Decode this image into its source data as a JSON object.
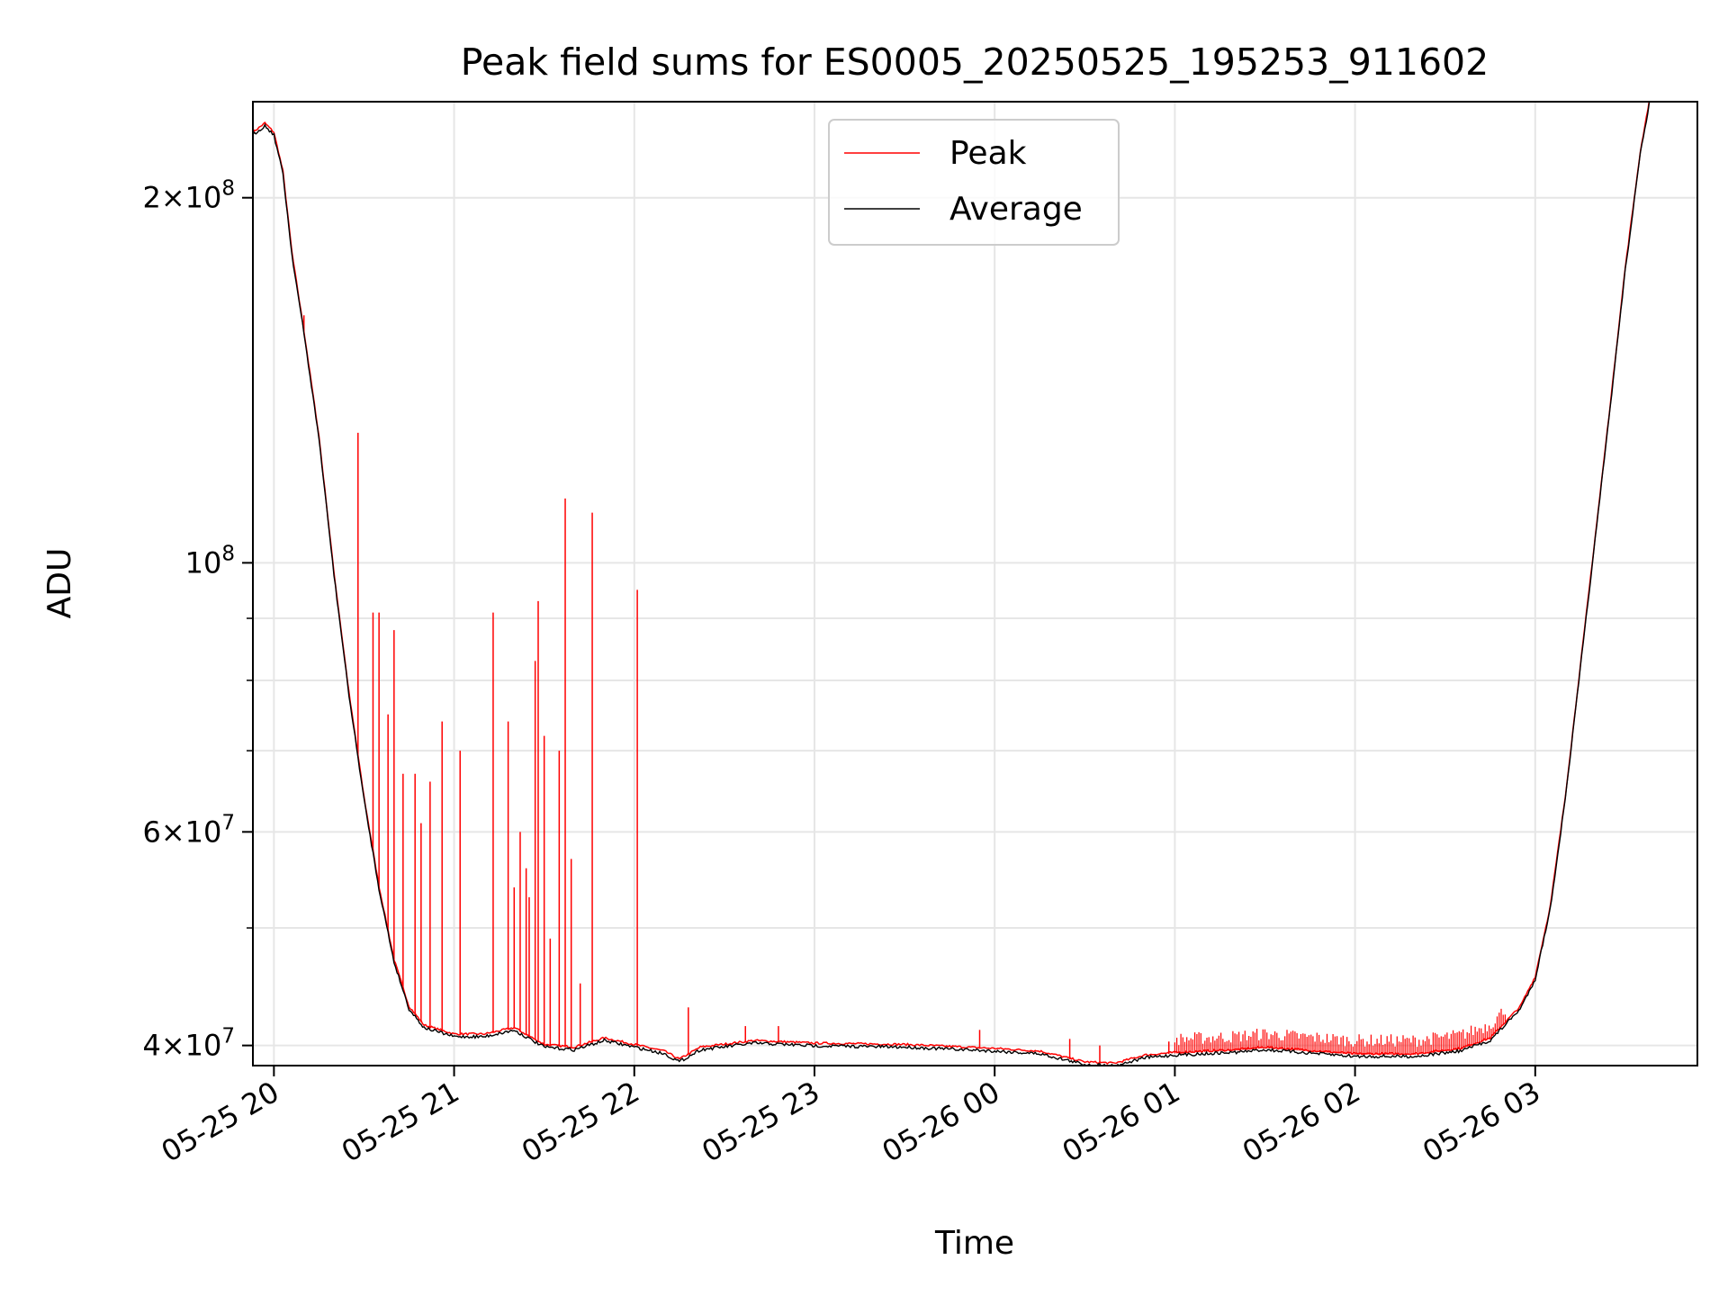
{
  "chart_data": {
    "type": "line",
    "title": "Peak field sums for ES0005_20250525_195253_911602",
    "xlabel": "Time",
    "ylabel": "ADU",
    "yscale": "log",
    "grid": true,
    "legend_position": "upper center",
    "xlim": [
      "2025-05-25 19:53",
      "2025-05-26 03:54"
    ],
    "ylim": [
      38500000,
      240000000
    ],
    "x_ticks": [
      {
        "t": "2025-05-25 20:00",
        "label": "05-25 20"
      },
      {
        "t": "2025-05-25 21:00",
        "label": "05-25 21"
      },
      {
        "t": "2025-05-25 22:00",
        "label": "05-25 22"
      },
      {
        "t": "2025-05-25 23:00",
        "label": "05-25 23"
      },
      {
        "t": "2025-05-26 00:00",
        "label": "05-26 00"
      },
      {
        "t": "2025-05-26 01:00",
        "label": "05-26 01"
      },
      {
        "t": "2025-05-26 02:00",
        "label": "05-26 02"
      },
      {
        "t": "2025-05-26 03:00",
        "label": "05-26 03"
      }
    ],
    "y_major_ticks": [
      {
        "value": 40000000,
        "mantissa": "4",
        "exponent": "7"
      },
      {
        "value": 60000000,
        "mantissa": "6",
        "exponent": "7"
      },
      {
        "value": 100000000,
        "mantissa": "",
        "exponent": "8"
      },
      {
        "value": 200000000,
        "mantissa": "2",
        "exponent": "8"
      }
    ],
    "y_minor_grid": [
      50000000,
      70000000,
      80000000,
      90000000
    ],
    "series": [
      {
        "name": "Average",
        "color": "#000000",
        "points": [
          [
            "2025-05-25 19:53",
            226000000
          ],
          [
            "2025-05-25 19:57",
            230000000
          ],
          [
            "2025-05-25 20:00",
            226000000
          ],
          [
            "2025-05-25 20:03",
            210000000
          ],
          [
            "2025-05-25 20:06",
            180000000
          ],
          [
            "2025-05-25 20:10",
            155000000
          ],
          [
            "2025-05-25 20:15",
            127000000
          ],
          [
            "2025-05-25 20:20",
            98000000
          ],
          [
            "2025-05-25 20:25",
            78000000
          ],
          [
            "2025-05-25 20:30",
            64000000
          ],
          [
            "2025-05-25 20:35",
            54000000
          ],
          [
            "2025-05-25 20:40",
            47000000
          ],
          [
            "2025-05-25 20:45",
            43000000
          ],
          [
            "2025-05-25 20:50",
            41500000
          ],
          [
            "2025-05-25 21:00",
            40800000
          ],
          [
            "2025-05-25 21:10",
            40800000
          ],
          [
            "2025-05-25 21:20",
            41300000
          ],
          [
            "2025-05-25 21:30",
            40000000
          ],
          [
            "2025-05-25 21:40",
            39800000
          ],
          [
            "2025-05-25 21:50",
            40500000
          ],
          [
            "2025-05-25 22:00",
            40000000
          ],
          [
            "2025-05-25 22:10",
            39500000
          ],
          [
            "2025-05-25 22:15",
            38900000
          ],
          [
            "2025-05-25 22:22",
            39800000
          ],
          [
            "2025-05-25 22:40",
            40300000
          ],
          [
            "2025-05-25 23:00",
            40100000
          ],
          [
            "2025-05-25 23:30",
            40000000
          ],
          [
            "2025-05-26 00:00",
            39700000
          ],
          [
            "2025-05-26 00:15",
            39500000
          ],
          [
            "2025-05-26 00:30",
            38700000
          ],
          [
            "2025-05-26 00:40",
            38600000
          ],
          [
            "2025-05-26 00:50",
            39200000
          ],
          [
            "2025-05-26 01:00",
            39400000
          ],
          [
            "2025-05-26 01:20",
            39600000
          ],
          [
            "2025-05-26 01:30",
            39800000
          ],
          [
            "2025-05-26 02:00",
            39300000
          ],
          [
            "2025-05-26 02:20",
            39300000
          ],
          [
            "2025-05-26 02:35",
            39700000
          ],
          [
            "2025-05-26 02:45",
            40500000
          ],
          [
            "2025-05-26 02:55",
            43000000
          ],
          [
            "2025-05-26 03:00",
            45500000
          ],
          [
            "2025-05-26 03:05",
            52000000
          ],
          [
            "2025-05-26 03:10",
            64000000
          ],
          [
            "2025-05-26 03:15",
            82000000
          ],
          [
            "2025-05-26 03:20",
            105000000
          ],
          [
            "2025-05-26 03:25",
            135000000
          ],
          [
            "2025-05-26 03:30",
            175000000
          ],
          [
            "2025-05-26 03:35",
            218000000
          ],
          [
            "2025-05-26 03:38",
            240000000
          ]
        ]
      },
      {
        "name": "Peak",
        "color": "#ff0000",
        "spikes": [
          [
            "2025-05-25 20:10",
            160000000
          ],
          [
            "2025-05-25 20:28",
            128000000
          ],
          [
            "2025-05-25 20:33",
            91000000
          ],
          [
            "2025-05-25 20:35",
            91000000
          ],
          [
            "2025-05-25 20:38",
            75000000
          ],
          [
            "2025-05-25 20:40",
            88000000
          ],
          [
            "2025-05-25 20:43",
            67000000
          ],
          [
            "2025-05-25 20:47",
            67000000
          ],
          [
            "2025-05-25 20:49",
            61000000
          ],
          [
            "2025-05-25 20:52",
            66000000
          ],
          [
            "2025-05-25 20:56",
            74000000
          ],
          [
            "2025-05-25 21:02",
            70000000
          ],
          [
            "2025-05-25 21:13",
            91000000
          ],
          [
            "2025-05-25 21:18",
            74000000
          ],
          [
            "2025-05-25 21:20",
            54000000
          ],
          [
            "2025-05-25 21:22",
            60000000
          ],
          [
            "2025-05-25 21:24",
            56000000
          ],
          [
            "2025-05-25 21:25",
            53000000
          ],
          [
            "2025-05-25 21:27",
            83000000
          ],
          [
            "2025-05-25 21:28",
            93000000
          ],
          [
            "2025-05-25 21:30",
            72000000
          ],
          [
            "2025-05-25 21:32",
            49000000
          ],
          [
            "2025-05-25 21:35",
            70000000
          ],
          [
            "2025-05-25 21:37",
            113000000
          ],
          [
            "2025-05-25 21:39",
            57000000
          ],
          [
            "2025-05-25 21:42",
            45000000
          ],
          [
            "2025-05-25 21:46",
            110000000
          ],
          [
            "2025-05-25 22:01",
            95000000
          ],
          [
            "2025-05-25 22:18",
            43000000
          ],
          [
            "2025-05-25 22:37",
            41500000
          ],
          [
            "2025-05-25 22:48",
            41500000
          ],
          [
            "2025-05-25 23:55",
            41200000
          ],
          [
            "2025-05-26 00:25",
            40500000
          ],
          [
            "2025-05-26 00:35",
            40000000
          ],
          [
            "2025-05-26 00:58",
            40300000
          ]
        ],
        "noise_band": [
          [
            "2025-05-26 01:00",
            40500000
          ],
          [
            "2025-05-26 02:50",
            41200000
          ]
        ]
      }
    ]
  }
}
